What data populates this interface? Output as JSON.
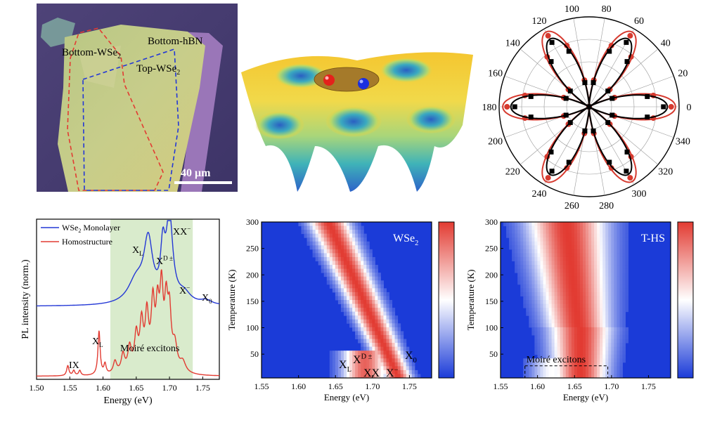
{
  "micrograph": {
    "label_bottom_wse2": "Bottom-WSe",
    "label_bottom_wse2_sub": "2",
    "label_bottom_hbn": "Bottom-hBN",
    "label_top_wse2": "Top-WSe",
    "label_top_wse2_sub": "2",
    "scale_bar": "40 μm"
  },
  "polar": {
    "angle_labels": [
      "0",
      "20",
      "40",
      "60",
      "80",
      "100",
      "120",
      "140",
      "160",
      "180",
      "200",
      "220",
      "240",
      "260",
      "280",
      "300",
      "320",
      "340"
    ],
    "series": [
      {
        "color": "#d63a2f",
        "marker": "circle"
      },
      {
        "color": "#000000",
        "marker": "square"
      }
    ]
  },
  "spectra": {
    "ylabel": "PL intensity (norm.)",
    "xlabel": "Energy (eV)",
    "xticks": [
      "1.50",
      "1.55",
      "1.60",
      "1.65",
      "1.70",
      "1.75"
    ],
    "legend": [
      {
        "label": "WSe",
        "sub": "2",
        "rest": " Monolayer",
        "color": "#2438d6"
      },
      {
        "label": "Homostructure",
        "sub": "",
        "rest": "",
        "color": "#e23b32"
      }
    ],
    "annotations": {
      "xx": "XX",
      "xx_sup": "−",
      "xl_top": "X",
      "xl_top_sub": "L",
      "xd": "X",
      "xd_sup": "D ±",
      "xminus": "X",
      "xminus_sup": "−",
      "x0": "X",
      "x0_sub": "0",
      "xl_bottom": "X",
      "xl_bottom_sub": "L",
      "ix": "IX",
      "moire": "Moiré excitons"
    },
    "shade_range_ev": [
      1.611,
      1.735
    ]
  },
  "map_wse2": {
    "title": "WSe",
    "title_sub": "2",
    "ylabel": "Temperature (K)",
    "xlabel": "Energy (eV)",
    "yticks": [
      "50",
      "100",
      "150",
      "200",
      "250",
      "300"
    ],
    "xticks": [
      "1.55",
      "1.60",
      "1.65",
      "1.70",
      "1.75"
    ],
    "labels": {
      "x0": "X",
      "x0_sub": "0",
      "xl": "X",
      "xl_sub": "L",
      "xd": "X",
      "xd_sup": "D ±",
      "xx": "XX",
      "xm": "X",
      "xm_sup": "−"
    }
  },
  "map_ths": {
    "title": "T-HS",
    "ylabel": "Temperature (K)",
    "xlabel": "Energy (eV)",
    "yticks": [
      "50",
      "100",
      "150",
      "200",
      "250",
      "300"
    ],
    "xticks": [
      "1.55",
      "1.60",
      "1.65",
      "1.70",
      "1.75"
    ],
    "moire": "Moiré excitons"
  },
  "colorbar": {
    "top": "#e23b32",
    "mid": "#ffffff",
    "bottom": "#1b3bd8"
  }
}
